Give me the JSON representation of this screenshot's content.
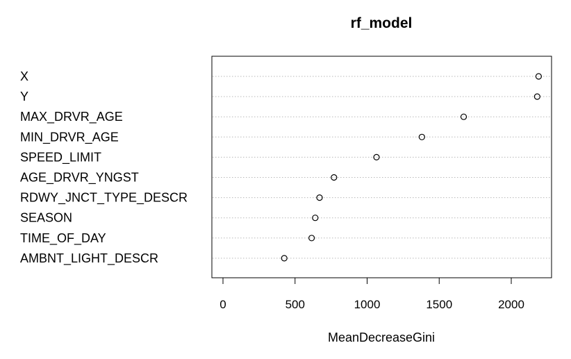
{
  "chart_data": {
    "type": "scatter",
    "title": "rf_model",
    "xlabel": "MeanDecreaseGini",
    "ylabel": "",
    "xlim": [
      -80,
      2270
    ],
    "xticks": [
      0,
      500,
      1000,
      1500,
      2000
    ],
    "grid": "dotted-horizontal",
    "categories": [
      "X",
      "Y",
      "MAX_DRVR_AGE",
      "MIN_DRVR_AGE",
      "SPEED_LIMIT",
      "AGE_DRVR_YNGST",
      "RDWY_JNCT_TYPE_DESCR",
      "SEASON",
      "TIME_OF_DAY",
      "AMBNT_LIGHT_DESCR"
    ],
    "values": [
      2190,
      2180,
      1670,
      1380,
      1065,
      770,
      670,
      640,
      615,
      425
    ]
  }
}
